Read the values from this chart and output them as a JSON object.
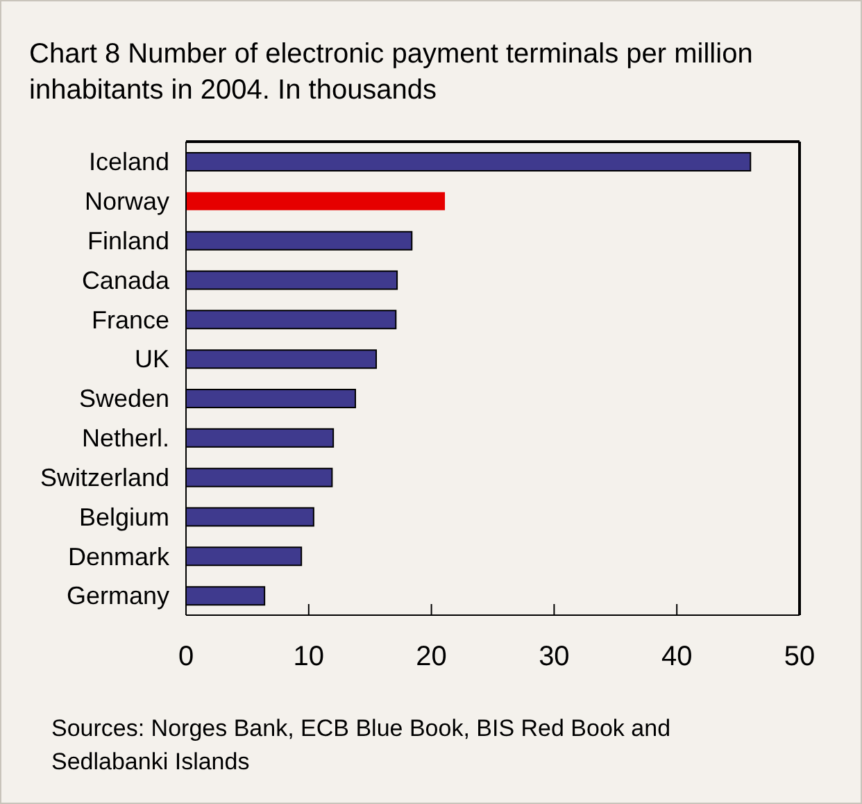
{
  "chart_data": {
    "type": "bar",
    "orientation": "horizontal",
    "title": "Chart 8 Number of electronic payment terminals per million inhabitants in 2004. In thousands",
    "categories": [
      "Iceland",
      "Norway",
      "Finland",
      "Canada",
      "France",
      "UK",
      "Sweden",
      "Netherl.",
      "Switzerland",
      "Belgium",
      "Denmark",
      "Germany"
    ],
    "values": [
      46.0,
      21.1,
      18.4,
      17.2,
      17.1,
      15.5,
      13.8,
      12.0,
      11.9,
      10.4,
      9.4,
      6.4
    ],
    "colors": [
      "#3f3a8e",
      "#e60000",
      "#3f3a8e",
      "#3f3a8e",
      "#3f3a8e",
      "#3f3a8e",
      "#3f3a8e",
      "#3f3a8e",
      "#3f3a8e",
      "#3f3a8e",
      "#3f3a8e",
      "#3f3a8e"
    ],
    "xlim": [
      0,
      50
    ],
    "xticks": [
      0,
      10,
      20,
      30,
      40,
      50
    ],
    "grid": false,
    "legend": false,
    "annotations": [
      "Sources: Norges Bank, ECB Blue Book, BIS Red Book and Sedlabanki Islands"
    ]
  }
}
